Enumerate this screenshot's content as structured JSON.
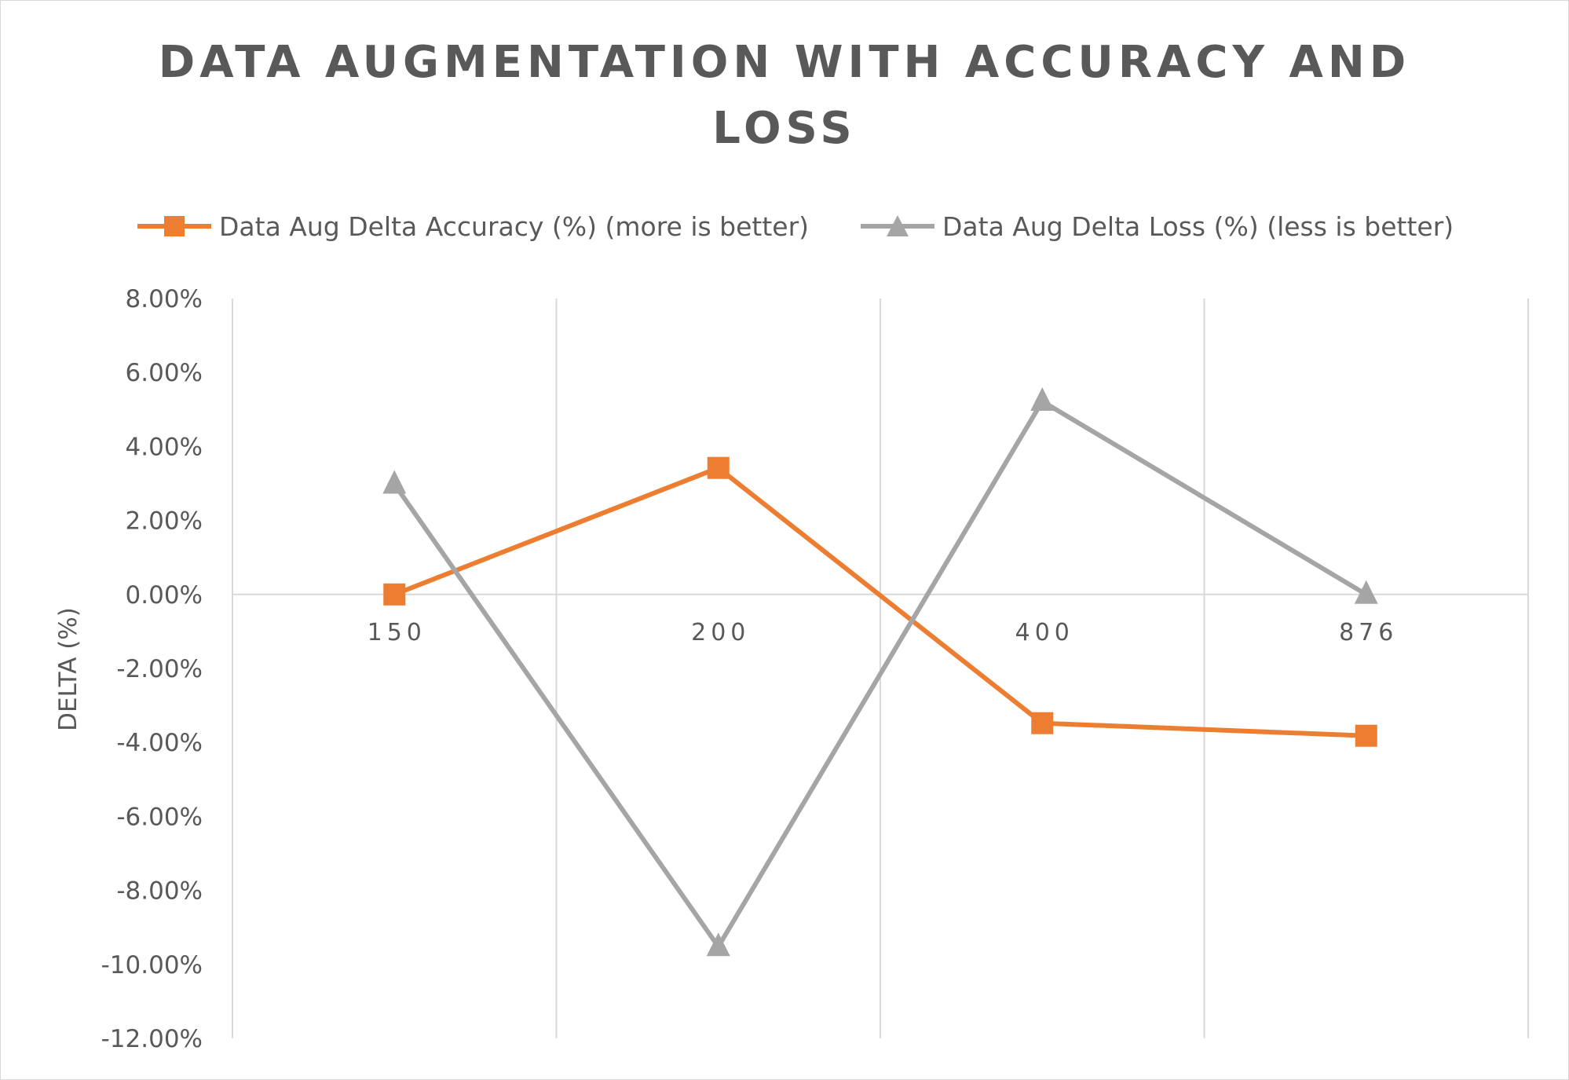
{
  "chart_data": {
    "type": "line",
    "title": "Data Augmentation with Accuracy and Loss",
    "xlabel": "",
    "ylabel": "DELTA (%)",
    "categories": [
      "150",
      "200",
      "400",
      "876"
    ],
    "ylim": [
      -12,
      8
    ],
    "ytick_values": [
      8,
      6,
      4,
      2,
      0,
      -2,
      -4,
      -6,
      -8,
      -10,
      -12
    ],
    "ytick_labels": [
      "8.00%",
      "6.00%",
      "4.00%",
      "2.00%",
      "0.00%",
      "-2.00%",
      "-4.00%",
      "-6.00%",
      "-8.00%",
      "-10.00%",
      "-12.00%"
    ],
    "grid": "vertical",
    "legend_position": "top",
    "series": [
      {
        "name": "Data Aug Delta Accuracy (%) (more is better)",
        "values": [
          0.0,
          3.42,
          -3.48,
          -3.82
        ],
        "color": "#ed7d31",
        "marker": "square"
      },
      {
        "name": "Data Aug Delta Loss (%) (less is better)",
        "values": [
          2.98,
          -9.52,
          5.22,
          0.0
        ],
        "color": "#a5a5a5",
        "marker": "triangle"
      }
    ]
  }
}
